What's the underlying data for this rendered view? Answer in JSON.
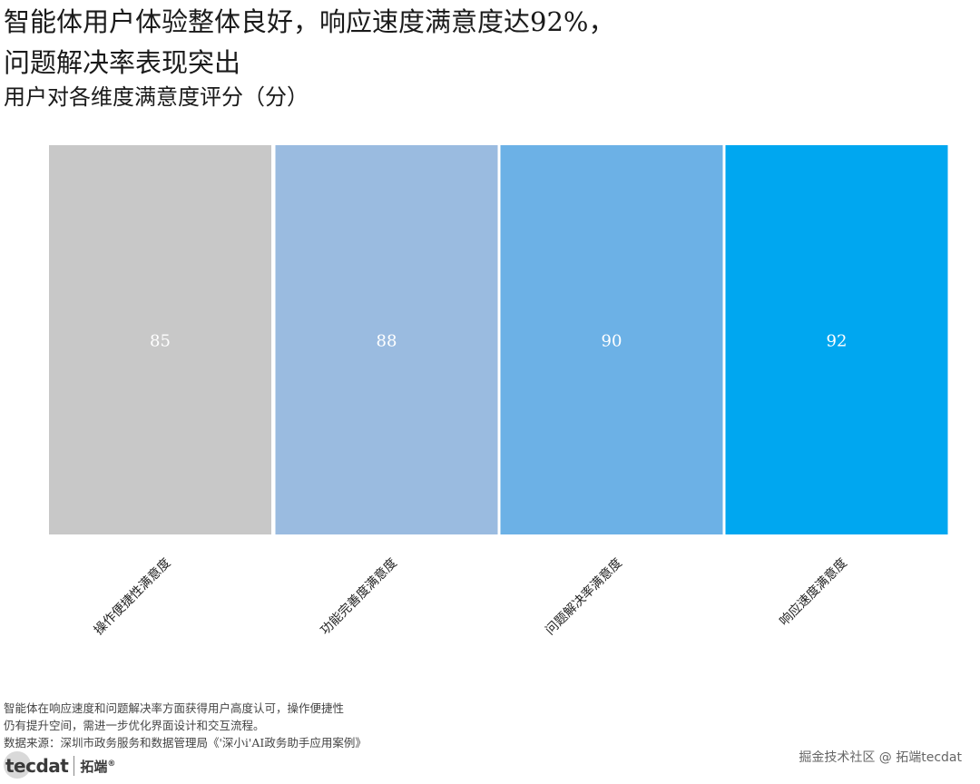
{
  "header": {
    "title_line1": "智能体用户体验整体良好，响应速度满意度达92%，",
    "title_line2": "问题解决率表现突出",
    "subtitle": "用户对各维度满意度评分（分）"
  },
  "chart_data": {
    "type": "bar",
    "title": "",
    "categories": [
      "操作便捷性满意度",
      "功能完善度满意度",
      "问题解决率满意度",
      "响应速度满意度"
    ],
    "values": [
      85,
      88,
      90,
      92
    ],
    "colors": [
      "#c8c8c8",
      "#9abbe0",
      "#6cb1e6",
      "#00a7f0"
    ],
    "data_labels": [
      "85",
      "88",
      "90",
      "92"
    ],
    "label_color": "#ffffff",
    "xlabel": "",
    "ylabel": "",
    "grid": false,
    "legend": "none",
    "x_tick_rotation": "-45deg"
  },
  "footnotes": {
    "line1": "智能体在响应速度和问题解决率方面获得用户高度认可，操作便捷性",
    "line2": "仍有提升空间，需进一步优化界面设计和交互流程。",
    "source": "数据来源：深圳市政务服务和数据管理局《'深小i'AI政务助手应用案例》"
  },
  "logo": {
    "wordmark": "tecdat",
    "brand_cn": "拓端",
    "reg_mark": "®",
    "icon": "tecdat-logo-icon"
  },
  "watermark": "掘金技术社区 @ 拓端tecdat"
}
